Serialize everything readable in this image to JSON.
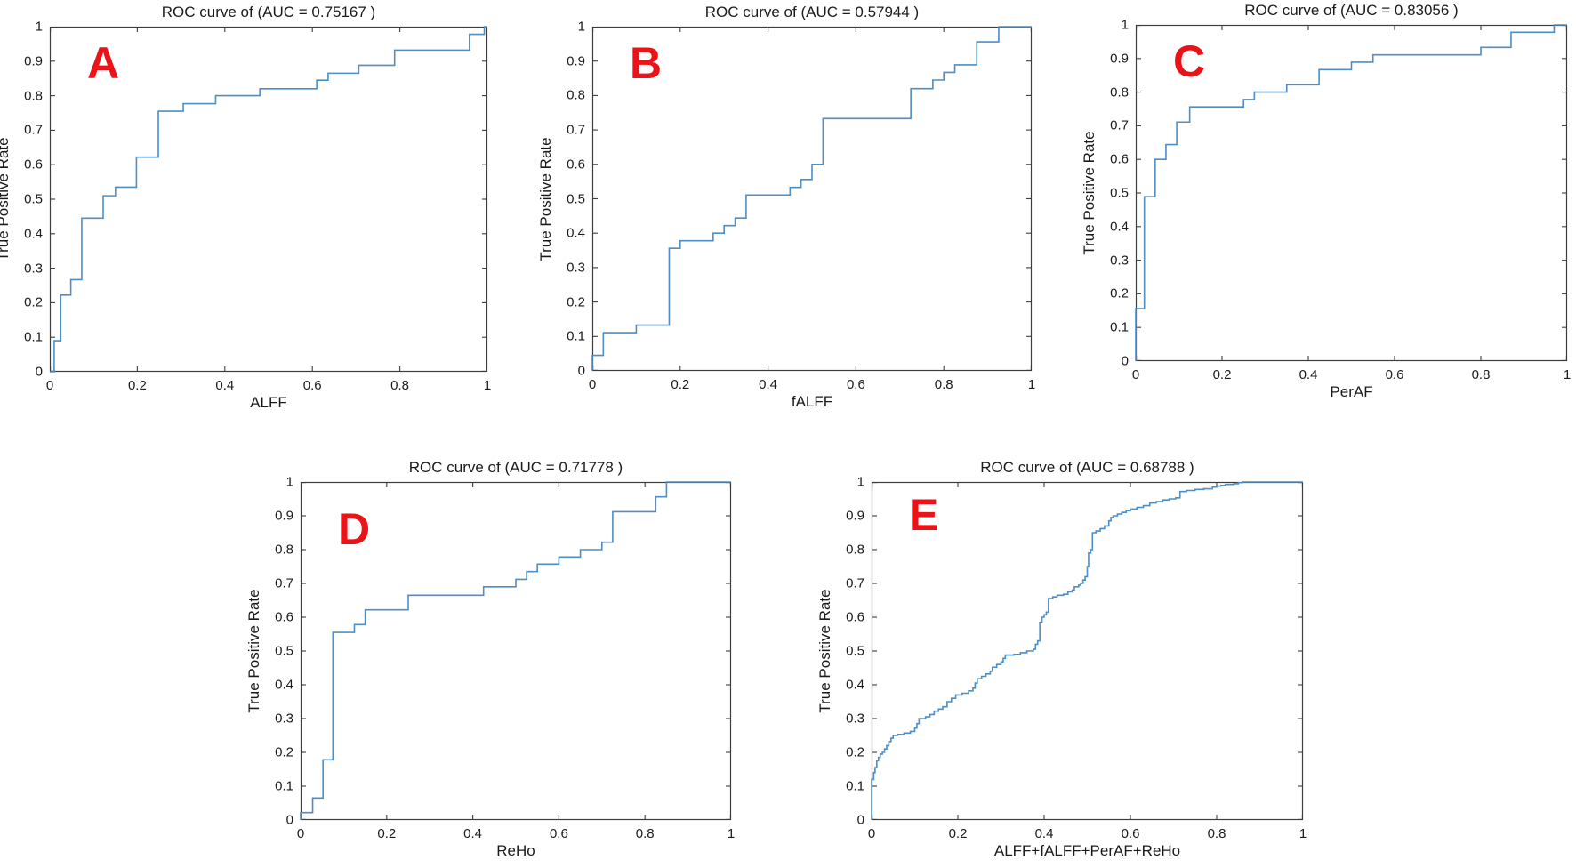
{
  "figure": {
    "background": "#ffffff",
    "curve_color": "#4d8ec7",
    "axis_color": "#3d3d3d",
    "text_color": "#1b1b1b",
    "letter_color": "#ea1317",
    "ylabel": "True Positive Rate"
  },
  "chart_data": [
    {
      "type": "line",
      "letter": "A",
      "title": "ROC curve of (AUC = 0.75167 )",
      "auc": 0.75167,
      "xlabel": "ALFF",
      "ylabel": "True Positive Rate",
      "xlim": [
        0,
        1
      ],
      "ylim": [
        0,
        1
      ],
      "grid": false,
      "legend": "none",
      "step": "after",
      "x_ticks": [
        "0",
        "0.2",
        "0.4",
        "0.6",
        "0.8",
        "1"
      ],
      "y_ticks": [
        "0",
        "0.1",
        "0.2",
        "0.3",
        "0.4",
        "0.5",
        "0.6",
        "0.7",
        "0.8",
        "0.9",
        "1"
      ],
      "points": [
        [
          0,
          0
        ],
        [
          0.01,
          0.09
        ],
        [
          0.025,
          0.222
        ],
        [
          0.048,
          0.267
        ],
        [
          0.073,
          0.445
        ],
        [
          0.122,
          0.51
        ],
        [
          0.15,
          0.535
        ],
        [
          0.198,
          0.622
        ],
        [
          0.248,
          0.755
        ],
        [
          0.305,
          0.777
        ],
        [
          0.379,
          0.8
        ],
        [
          0.48,
          0.82
        ],
        [
          0.61,
          0.845
        ],
        [
          0.636,
          0.865
        ],
        [
          0.706,
          0.888
        ],
        [
          0.788,
          0.932
        ],
        [
          0.959,
          0.978
        ],
        [
          0.993,
          1
        ],
        [
          1,
          1
        ]
      ]
    },
    {
      "type": "line",
      "letter": "B",
      "title": "ROC curve of (AUC = 0.57944 )",
      "auc": 0.57944,
      "xlabel": "fALFF",
      "ylabel": "True Positive Rate",
      "xlim": [
        0,
        1
      ],
      "ylim": [
        0,
        1
      ],
      "grid": false,
      "legend": "none",
      "step": "after",
      "x_ticks": [
        "0",
        "0.2",
        "0.4",
        "0.6",
        "0.8",
        "1"
      ],
      "y_ticks": [
        "0",
        "0.1",
        "0.2",
        "0.3",
        "0.4",
        "0.5",
        "0.6",
        "0.7",
        "0.8",
        "0.9",
        "1"
      ],
      "points": [
        [
          0,
          0
        ],
        [
          0,
          0.045
        ],
        [
          0.025,
          0.111
        ],
        [
          0.1,
          0.133
        ],
        [
          0.175,
          0.356
        ],
        [
          0.2,
          0.378
        ],
        [
          0.275,
          0.4
        ],
        [
          0.3,
          0.422
        ],
        [
          0.325,
          0.444
        ],
        [
          0.35,
          0.511
        ],
        [
          0.45,
          0.533
        ],
        [
          0.475,
          0.556
        ],
        [
          0.5,
          0.6
        ],
        [
          0.525,
          0.733
        ],
        [
          0.725,
          0.82
        ],
        [
          0.775,
          0.845
        ],
        [
          0.8,
          0.867
        ],
        [
          0.825,
          0.889
        ],
        [
          0.875,
          0.956
        ],
        [
          0.925,
          1
        ],
        [
          1,
          1
        ]
      ]
    },
    {
      "type": "line",
      "letter": "C",
      "title": "ROC curve of (AUC = 0.83056 )",
      "auc": 0.83056,
      "xlabel": "PerAF",
      "ylabel": "True Positive Rate",
      "xlim": [
        0,
        1
      ],
      "ylim": [
        0,
        1
      ],
      "grid": false,
      "legend": "none",
      "step": "after",
      "x_ticks": [
        "0",
        "0.2",
        "0.4",
        "0.6",
        "0.8",
        "1"
      ],
      "y_ticks": [
        "0",
        "0.1",
        "0.2",
        "0.3",
        "0.4",
        "0.5",
        "0.6",
        "0.7",
        "0.8",
        "0.9",
        "1"
      ],
      "points": [
        [
          0,
          0
        ],
        [
          0,
          0.156
        ],
        [
          0.02,
          0.489
        ],
        [
          0.045,
          0.6
        ],
        [
          0.07,
          0.644
        ],
        [
          0.095,
          0.711
        ],
        [
          0.125,
          0.756
        ],
        [
          0.25,
          0.778
        ],
        [
          0.275,
          0.8
        ],
        [
          0.35,
          0.822
        ],
        [
          0.425,
          0.867
        ],
        [
          0.5,
          0.889
        ],
        [
          0.55,
          0.911
        ],
        [
          0.8,
          0.933
        ],
        [
          0.87,
          0.978
        ],
        [
          0.97,
          1
        ],
        [
          1,
          1
        ]
      ]
    },
    {
      "type": "line",
      "letter": "D",
      "title": "ROC curve of (AUC = 0.71778 )",
      "auc": 0.71778,
      "xlabel": "ReHo",
      "ylabel": "True Positive Rate",
      "xlim": [
        0,
        1
      ],
      "ylim": [
        0,
        1
      ],
      "grid": false,
      "legend": "none",
      "step": "after",
      "x_ticks": [
        "0",
        "0.2",
        "0.4",
        "0.6",
        "0.8",
        "1"
      ],
      "y_ticks": [
        "0",
        "0.1",
        "0.2",
        "0.3",
        "0.4",
        "0.5",
        "0.6",
        "0.7",
        "0.8",
        "0.9",
        "1"
      ],
      "points": [
        [
          0,
          0
        ],
        [
          0,
          0.022
        ],
        [
          0.028,
          0.065
        ],
        [
          0.052,
          0.178
        ],
        [
          0.075,
          0.555
        ],
        [
          0.125,
          0.578
        ],
        [
          0.15,
          0.622
        ],
        [
          0.25,
          0.665
        ],
        [
          0.425,
          0.69
        ],
        [
          0.5,
          0.712
        ],
        [
          0.525,
          0.735
        ],
        [
          0.55,
          0.757
        ],
        [
          0.6,
          0.778
        ],
        [
          0.65,
          0.8
        ],
        [
          0.7,
          0.822
        ],
        [
          0.725,
          0.912
        ],
        [
          0.825,
          0.956
        ],
        [
          0.85,
          1
        ],
        [
          1,
          1
        ]
      ]
    },
    {
      "type": "line",
      "letter": "E",
      "title": "ROC curve of (AUC = 0.68788 )",
      "auc": 0.68788,
      "xlabel": "ALFF+fALFF+PerAF+ReHo",
      "ylabel": "True Positive Rate",
      "xlim": [
        0,
        1
      ],
      "ylim": [
        0,
        1
      ],
      "grid": false,
      "legend": "none",
      "step": "after",
      "x_ticks": [
        "0",
        "0.2",
        "0.4",
        "0.6",
        "0.8",
        "1"
      ],
      "y_ticks": [
        "0",
        "0.1",
        "0.2",
        "0.3",
        "0.4",
        "0.5",
        "0.6",
        "0.7",
        "0.8",
        "0.9",
        "1"
      ],
      "points": [
        [
          0,
          0
        ],
        [
          0,
          0.12
        ],
        [
          0.005,
          0.14
        ],
        [
          0.008,
          0.155
        ],
        [
          0.012,
          0.175
        ],
        [
          0.016,
          0.185
        ],
        [
          0.02,
          0.195
        ],
        [
          0.025,
          0.2
        ],
        [
          0.03,
          0.21
        ],
        [
          0.035,
          0.22
        ],
        [
          0.04,
          0.232
        ],
        [
          0.045,
          0.242
        ],
        [
          0.05,
          0.25
        ],
        [
          0.06,
          0.253
        ],
        [
          0.075,
          0.257
        ],
        [
          0.09,
          0.262
        ],
        [
          0.1,
          0.272
        ],
        [
          0.105,
          0.285
        ],
        [
          0.11,
          0.3
        ],
        [
          0.125,
          0.305
        ],
        [
          0.135,
          0.312
        ],
        [
          0.145,
          0.322
        ],
        [
          0.155,
          0.328
        ],
        [
          0.165,
          0.335
        ],
        [
          0.175,
          0.35
        ],
        [
          0.185,
          0.36
        ],
        [
          0.195,
          0.37
        ],
        [
          0.21,
          0.375
        ],
        [
          0.225,
          0.382
        ],
        [
          0.235,
          0.39
        ],
        [
          0.24,
          0.405
        ],
        [
          0.245,
          0.418
        ],
        [
          0.255,
          0.425
        ],
        [
          0.265,
          0.432
        ],
        [
          0.275,
          0.44
        ],
        [
          0.28,
          0.452
        ],
        [
          0.29,
          0.46
        ],
        [
          0.3,
          0.468
        ],
        [
          0.305,
          0.478
        ],
        [
          0.31,
          0.488
        ],
        [
          0.33,
          0.49
        ],
        [
          0.345,
          0.495
        ],
        [
          0.36,
          0.5
        ],
        [
          0.375,
          0.505
        ],
        [
          0.38,
          0.52
        ],
        [
          0.385,
          0.53
        ],
        [
          0.39,
          0.585
        ],
        [
          0.395,
          0.6
        ],
        [
          0.4,
          0.607
        ],
        [
          0.405,
          0.615
        ],
        [
          0.41,
          0.655
        ],
        [
          0.42,
          0.66
        ],
        [
          0.43,
          0.665
        ],
        [
          0.445,
          0.668
        ],
        [
          0.455,
          0.675
        ],
        [
          0.465,
          0.68
        ],
        [
          0.47,
          0.69
        ],
        [
          0.48,
          0.695
        ],
        [
          0.485,
          0.7
        ],
        [
          0.49,
          0.71
        ],
        [
          0.495,
          0.72
        ],
        [
          0.5,
          0.75
        ],
        [
          0.503,
          0.79
        ],
        [
          0.508,
          0.8
        ],
        [
          0.512,
          0.85
        ],
        [
          0.52,
          0.855
        ],
        [
          0.53,
          0.862
        ],
        [
          0.54,
          0.87
        ],
        [
          0.55,
          0.885
        ],
        [
          0.555,
          0.895
        ],
        [
          0.56,
          0.9
        ],
        [
          0.57,
          0.905
        ],
        [
          0.58,
          0.91
        ],
        [
          0.59,
          0.915
        ],
        [
          0.6,
          0.92
        ],
        [
          0.615,
          0.925
        ],
        [
          0.63,
          0.93
        ],
        [
          0.645,
          0.938
        ],
        [
          0.66,
          0.942
        ],
        [
          0.675,
          0.947
        ],
        [
          0.69,
          0.95
        ],
        [
          0.705,
          0.953
        ],
        [
          0.715,
          0.972
        ],
        [
          0.73,
          0.975
        ],
        [
          0.75,
          0.978
        ],
        [
          0.77,
          0.98
        ],
        [
          0.79,
          0.985
        ],
        [
          0.8,
          0.988
        ],
        [
          0.81,
          0.99
        ],
        [
          0.82,
          0.993
        ],
        [
          0.84,
          0.995
        ],
        [
          0.85,
          0.998
        ],
        [
          0.86,
          1
        ],
        [
          1,
          1
        ]
      ]
    }
  ]
}
